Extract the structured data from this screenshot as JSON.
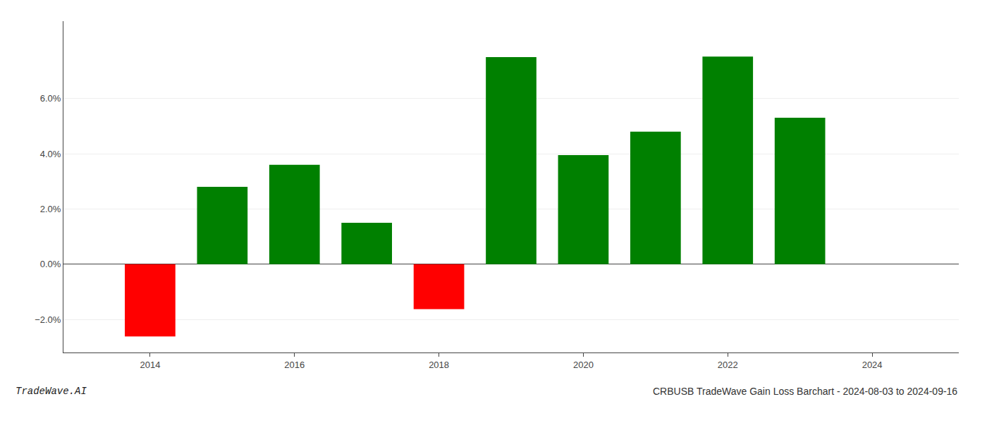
{
  "chart_data": {
    "type": "bar",
    "x": [
      2014,
      2015,
      2016,
      2017,
      2018,
      2019,
      2020,
      2021,
      2022,
      2023
    ],
    "values": [
      -2.62,
      2.8,
      3.6,
      1.5,
      -1.63,
      7.5,
      3.95,
      4.8,
      7.52,
      5.3
    ],
    "colors": [
      "#ff0000",
      "#008000",
      "#008000",
      "#008000",
      "#ff0000",
      "#008000",
      "#008000",
      "#008000",
      "#008000",
      "#008000"
    ],
    "xlim": [
      2012.8,
      2025.2
    ],
    "xticks": [
      2014,
      2016,
      2018,
      2020,
      2022,
      2024
    ],
    "ylim": [
      -3.2,
      8.8
    ],
    "yticks": [
      {
        "value": -2.0,
        "label": "−2.0%"
      },
      {
        "value": 0.0,
        "label": "0.0%"
      },
      {
        "value": 2.0,
        "label": "2.0%"
      },
      {
        "value": 4.0,
        "label": "4.0%"
      },
      {
        "value": 6.0,
        "label": "6.0%"
      }
    ],
    "grid": true,
    "annotations": [
      "TradeWave.AI",
      "CRBUSB TradeWave Gain Loss Barchart - 2024-08-03 to 2024-09-16"
    ]
  }
}
